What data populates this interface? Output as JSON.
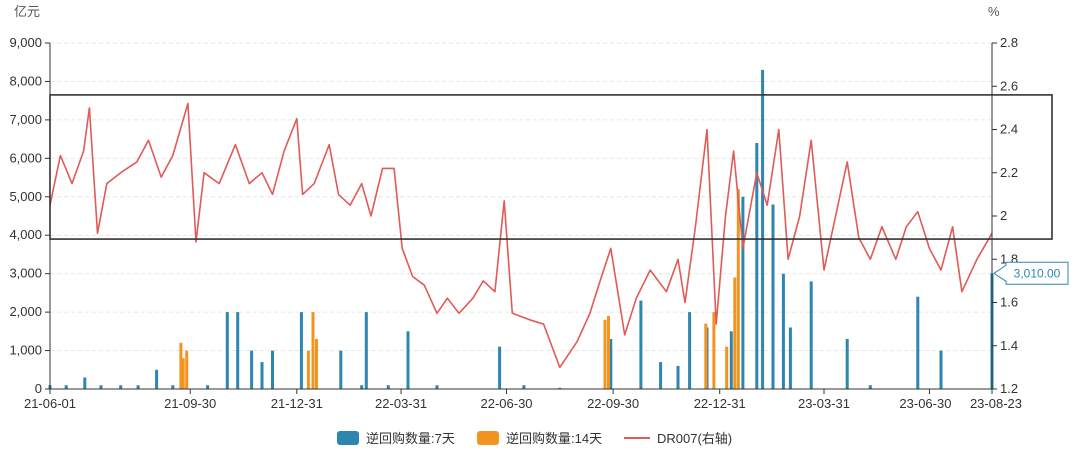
{
  "chart_data": {
    "type": "bar+line",
    "left_unit": "亿元",
    "right_unit": "%",
    "x_ticks": [
      "21-06-01",
      "21-09-30",
      "21-12-31",
      "22-03-31",
      "22-06-30",
      "22-09-30",
      "22-12-31",
      "23-03-31",
      "23-06-30",
      "23-08-23"
    ],
    "left_axis": {
      "ylim": [
        0,
        9000
      ],
      "ticks": [
        "0",
        "1,000",
        "2,000",
        "3,000",
        "4,000",
        "5,000",
        "6,000",
        "7,000",
        "8,000",
        "9,000"
      ]
    },
    "right_axis": {
      "ylim": [
        1.2,
        2.8
      ],
      "ticks": [
        "1.2",
        "1.4",
        "1.6",
        "1.8",
        "2",
        "2.2",
        "2.4",
        "2.6",
        "2.8"
      ]
    },
    "series": [
      {
        "name": "逆回购数量:7天",
        "color": "#2e86b0",
        "points": [
          [
            "21-06-01",
            100
          ],
          [
            "21-06-15",
            100
          ],
          [
            "21-07-01",
            300
          ],
          [
            "21-07-15",
            100
          ],
          [
            "21-08-01",
            100
          ],
          [
            "21-08-16",
            100
          ],
          [
            "21-09-01",
            500
          ],
          [
            "21-09-15",
            100
          ],
          [
            "21-10-15",
            100
          ],
          [
            "21-11-01",
            2000
          ],
          [
            "21-11-10",
            2000
          ],
          [
            "21-11-22",
            1000
          ],
          [
            "21-12-01",
            700
          ],
          [
            "21-12-10",
            1000
          ],
          [
            "22-01-04",
            2000
          ],
          [
            "22-01-14",
            100
          ],
          [
            "22-02-07",
            1000
          ],
          [
            "22-02-25",
            100
          ],
          [
            "22-03-01",
            2000
          ],
          [
            "22-03-20",
            100
          ],
          [
            "22-04-06",
            1500
          ],
          [
            "22-05-01",
            100
          ],
          [
            "22-06-24",
            1100
          ],
          [
            "22-07-15",
            100
          ],
          [
            "22-08-15",
            30
          ],
          [
            "22-09-28",
            1300
          ],
          [
            "22-10-24",
            2300
          ],
          [
            "22-11-10",
            700
          ],
          [
            "22-11-25",
            600
          ],
          [
            "22-12-05",
            2000
          ],
          [
            "22-12-20",
            1600
          ],
          [
            "23-01-10",
            1500
          ],
          [
            "23-01-20",
            5000
          ],
          [
            "23-02-01",
            6400
          ],
          [
            "23-02-06",
            8300
          ],
          [
            "23-02-15",
            4800
          ],
          [
            "23-02-24",
            3000
          ],
          [
            "23-03-02",
            1600
          ],
          [
            "23-03-20",
            2800
          ],
          [
            "23-04-20",
            1300
          ],
          [
            "23-05-10",
            100
          ],
          [
            "23-06-20",
            2400
          ],
          [
            "23-07-10",
            1000
          ],
          [
            "23-08-23",
            3010
          ]
        ]
      },
      {
        "name": "逆回购数量:14天",
        "color": "#f39320",
        "points": [
          [
            "21-09-22",
            1200
          ],
          [
            "21-09-24",
            800
          ],
          [
            "21-09-27",
            1000
          ],
          [
            "22-01-10",
            1000
          ],
          [
            "22-01-14",
            2000
          ],
          [
            "22-01-17",
            1300
          ],
          [
            "22-09-23",
            1800
          ],
          [
            "22-09-26",
            1900
          ],
          [
            "22-12-19",
            1700
          ],
          [
            "22-12-26",
            2000
          ],
          [
            "23-01-06",
            1100
          ],
          [
            "23-01-13",
            2900
          ],
          [
            "23-01-16",
            5200
          ]
        ]
      },
      {
        "name": "DR007(右轴)",
        "color": "#e05a57",
        "points": [
          [
            "21-06-01",
            2.05
          ],
          [
            "21-06-10",
            2.28
          ],
          [
            "21-06-20",
            2.15
          ],
          [
            "21-06-30",
            2.3
          ],
          [
            "21-07-05",
            2.5
          ],
          [
            "21-07-12",
            1.92
          ],
          [
            "21-07-20",
            2.15
          ],
          [
            "21-08-01",
            2.2
          ],
          [
            "21-08-15",
            2.25
          ],
          [
            "21-08-25",
            2.35
          ],
          [
            "21-09-05",
            2.18
          ],
          [
            "21-09-15",
            2.28
          ],
          [
            "21-09-28",
            2.52
          ],
          [
            "21-10-05",
            1.88
          ],
          [
            "21-10-12",
            2.2
          ],
          [
            "21-10-25",
            2.15
          ],
          [
            "21-11-08",
            2.33
          ],
          [
            "21-11-20",
            2.15
          ],
          [
            "21-12-01",
            2.2
          ],
          [
            "21-12-10",
            2.1
          ],
          [
            "21-12-20",
            2.3
          ],
          [
            "21-12-31",
            2.45
          ],
          [
            "22-01-05",
            2.1
          ],
          [
            "22-01-15",
            2.15
          ],
          [
            "22-01-28",
            2.33
          ],
          [
            "22-02-05",
            2.1
          ],
          [
            "22-02-15",
            2.05
          ],
          [
            "22-02-25",
            2.15
          ],
          [
            "22-03-05",
            2.0
          ],
          [
            "22-03-15",
            2.22
          ],
          [
            "22-03-25",
            2.22
          ],
          [
            "22-04-01",
            1.85
          ],
          [
            "22-04-10",
            1.72
          ],
          [
            "22-04-20",
            1.68
          ],
          [
            "22-05-01",
            1.55
          ],
          [
            "22-05-10",
            1.62
          ],
          [
            "22-05-20",
            1.55
          ],
          [
            "22-06-01",
            1.62
          ],
          [
            "22-06-10",
            1.7
          ],
          [
            "22-06-20",
            1.65
          ],
          [
            "22-06-28",
            2.07
          ],
          [
            "22-07-05",
            1.55
          ],
          [
            "22-07-20",
            1.52
          ],
          [
            "22-08-01",
            1.5
          ],
          [
            "22-08-15",
            1.3
          ],
          [
            "22-08-30",
            1.42
          ],
          [
            "22-09-10",
            1.55
          ],
          [
            "22-09-20",
            1.72
          ],
          [
            "22-09-28",
            1.85
          ],
          [
            "22-10-10",
            1.45
          ],
          [
            "22-10-20",
            1.62
          ],
          [
            "22-11-01",
            1.75
          ],
          [
            "22-11-15",
            1.65
          ],
          [
            "22-11-25",
            1.8
          ],
          [
            "22-12-01",
            1.6
          ],
          [
            "22-12-10",
            1.95
          ],
          [
            "22-12-20",
            2.4
          ],
          [
            "22-12-28",
            1.5
          ],
          [
            "23-01-05",
            2.0
          ],
          [
            "23-01-12",
            2.3
          ],
          [
            "23-01-20",
            1.85
          ],
          [
            "23-02-01",
            2.2
          ],
          [
            "23-02-10",
            2.05
          ],
          [
            "23-02-20",
            2.4
          ],
          [
            "23-02-28",
            1.8
          ],
          [
            "23-03-10",
            2.0
          ],
          [
            "23-03-20",
            2.35
          ],
          [
            "23-03-31",
            1.75
          ],
          [
            "23-04-10",
            2.0
          ],
          [
            "23-04-20",
            2.25
          ],
          [
            "23-04-30",
            1.9
          ],
          [
            "23-05-10",
            1.8
          ],
          [
            "23-05-20",
            1.95
          ],
          [
            "23-06-01",
            1.8
          ],
          [
            "23-06-10",
            1.95
          ],
          [
            "23-06-20",
            2.02
          ],
          [
            "23-06-30",
            1.85
          ],
          [
            "23-07-10",
            1.75
          ],
          [
            "23-07-20",
            1.95
          ],
          [
            "23-07-28",
            1.65
          ],
          [
            "23-08-10",
            1.8
          ],
          [
            "23-08-23",
            1.92
          ]
        ]
      }
    ],
    "last_value_label": "3,010.00",
    "annotation_box": {
      "range_left_axis": [
        3900,
        7650
      ]
    },
    "legend": {
      "placement": "bottom-center"
    },
    "grid": true
  }
}
